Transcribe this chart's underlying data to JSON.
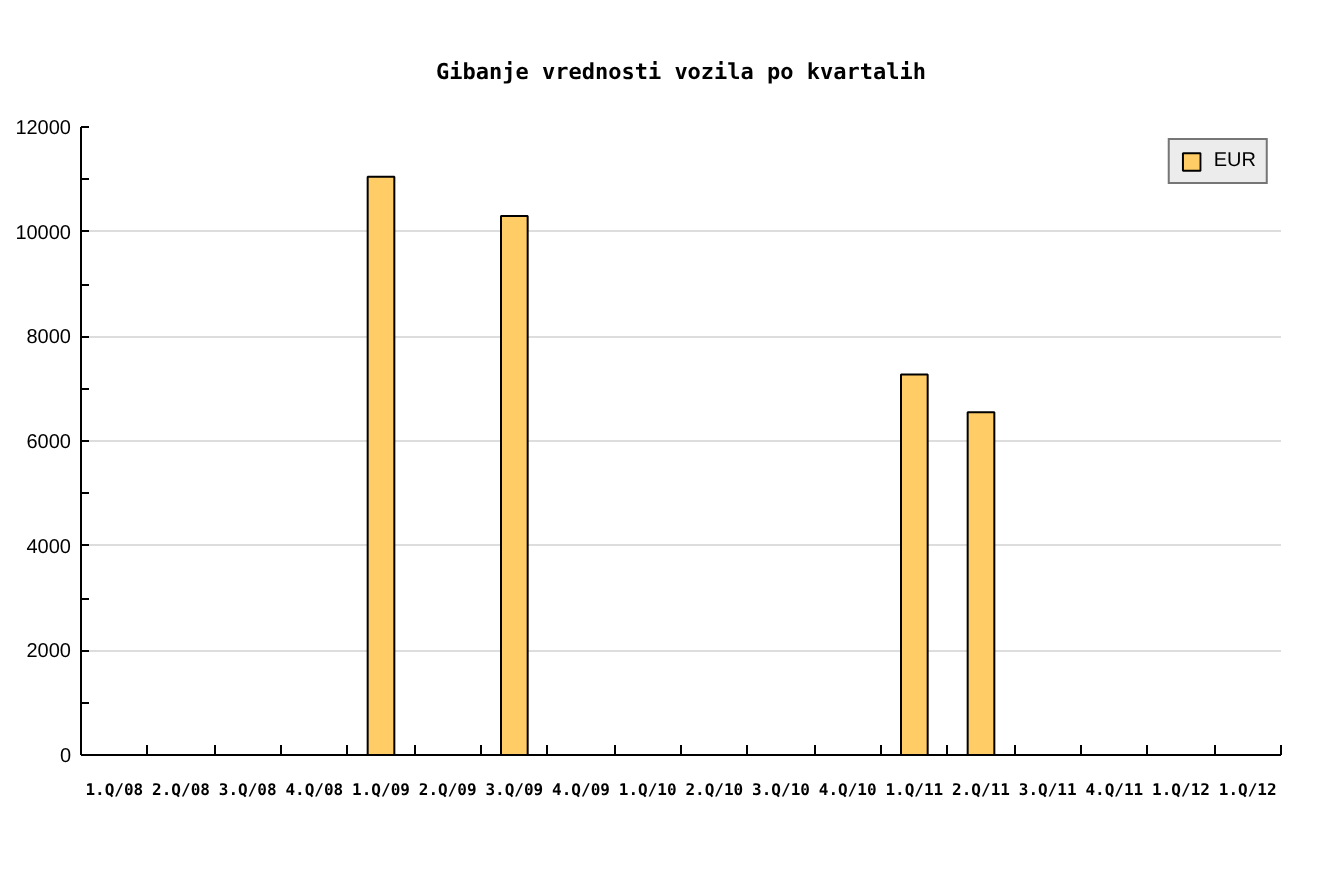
{
  "chart_data": {
    "type": "bar",
    "title": "Gibanje vrednosti vozila po kvartalih",
    "categories": [
      "1.Q/08",
      "2.Q/08",
      "3.Q/08",
      "4.Q/08",
      "1.Q/09",
      "2.Q/09",
      "3.Q/09",
      "4.Q/09",
      "1.Q/10",
      "2.Q/10",
      "3.Q/10",
      "4.Q/10",
      "1.Q/11",
      "2.Q/11",
      "3.Q/11",
      "4.Q/11",
      "1.Q/12",
      "1.Q/12"
    ],
    "series": [
      {
        "name": "EUR",
        "color": "#ffcc66",
        "values": [
          null,
          null,
          null,
          null,
          11050,
          null,
          10300,
          null,
          null,
          null,
          null,
          null,
          7270,
          6550,
          null,
          null,
          null,
          null
        ]
      }
    ],
    "ylim": [
      0,
      12000
    ],
    "yticks": [
      0,
      {
        "value": 1000,
        "label": null
      },
      2000,
      {
        "value": 3000,
        "label": null
      },
      4000,
      {
        "value": 5000,
        "label": null
      },
      6000,
      {
        "value": 7000,
        "label": null
      },
      8000,
      {
        "value": 9000,
        "label": null
      },
      10000,
      {
        "value": 11000,
        "label": null
      },
      12000
    ],
    "grid": "y",
    "legend": "top right"
  }
}
